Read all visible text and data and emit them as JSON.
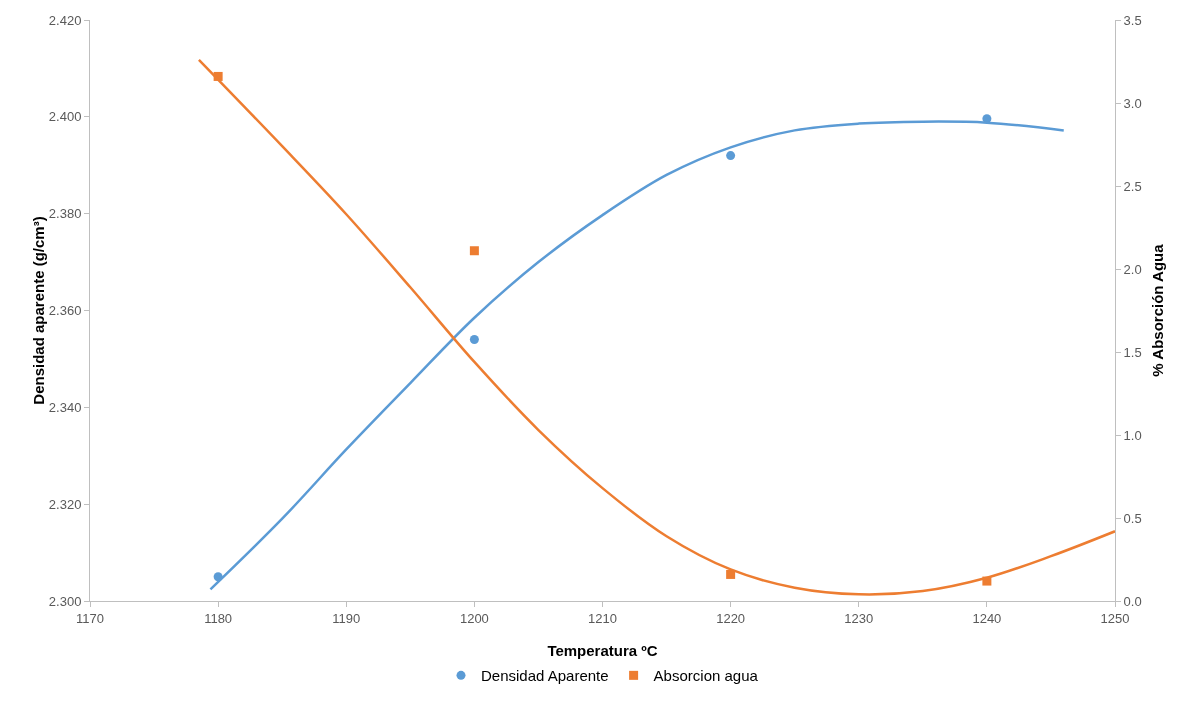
{
  "chart_data": {
    "type": "scatter",
    "xlabel": "Temperatura ºC",
    "ylabel": "Densidad aparente (g/cm³)",
    "y2label": "% Absorción Agua",
    "x": [
      1180,
      1200,
      1220,
      1240
    ],
    "series": [
      {
        "name": "Densidad Aparente",
        "color": "#5b9bd5",
        "marker": "circle",
        "values": [
          2.305,
          2.354,
          2.392,
          2.3996
        ]
      },
      {
        "name": "Absorcion agua",
        "color": "#ed7d31",
        "marker": "square",
        "axis": "y2",
        "values": [
          3.16,
          2.11,
          0.16,
          0.12
        ]
      },
      {
        "type": "line",
        "color": "#5b9bd5",
        "marker": "none",
        "x": [
          1179.4,
          1185,
          1190,
          1195,
          1200,
          1205,
          1210,
          1215,
          1220,
          1225,
          1230,
          1235,
          1240,
          1246
        ],
        "values": [
          2.3024,
          2.317,
          2.3313,
          2.345,
          2.3585,
          2.37,
          2.3797,
          2.388,
          2.3937,
          2.3972,
          2.3986,
          2.399,
          2.3988,
          2.3972
        ]
      },
      {
        "type": "line",
        "color": "#ed7d31",
        "marker": "none",
        "axis": "y2",
        "x": [
          1178.5,
          1185,
          1190,
          1195,
          1200,
          1205,
          1210,
          1215,
          1220,
          1225,
          1230,
          1235,
          1240,
          1245,
          1250
        ],
        "values": [
          3.26,
          2.74,
          2.33,
          1.89,
          1.44,
          1.03,
          0.68,
          0.39,
          0.19,
          0.08,
          0.04,
          0.06,
          0.14,
          0.27,
          0.42
        ]
      }
    ],
    "xlim": [
      1170,
      1250
    ],
    "xticks": [
      1170,
      1180,
      1190,
      1200,
      1210,
      1220,
      1230,
      1240,
      1250
    ],
    "ylim": [
      2.3,
      2.42
    ],
    "yticks": [
      {
        "value": 2.3,
        "label": "2.300"
      },
      {
        "value": 2.32,
        "label": "2.320"
      },
      {
        "value": 2.34,
        "label": "2.340"
      },
      {
        "value": 2.36,
        "label": "2.360"
      },
      {
        "value": 2.38,
        "label": "2.380"
      },
      {
        "value": 2.4,
        "label": "2.400"
      },
      {
        "value": 2.42,
        "label": "2.420"
      }
    ],
    "y2lim": [
      0,
      3.5
    ],
    "y2ticks": [
      {
        "value": 0,
        "label": "0.0"
      },
      {
        "value": 0.5,
        "label": "0.5"
      },
      {
        "value": 1,
        "label": "1.0"
      },
      {
        "value": 1.5,
        "label": "1.5"
      },
      {
        "value": 2,
        "label": "2.0"
      },
      {
        "value": 2.5,
        "label": "2.5"
      },
      {
        "value": 3,
        "label": "3.0"
      },
      {
        "value": 3.5,
        "label": "3.5"
      }
    ],
    "grid": false,
    "legend": "bottom",
    "line_style": "solid"
  }
}
